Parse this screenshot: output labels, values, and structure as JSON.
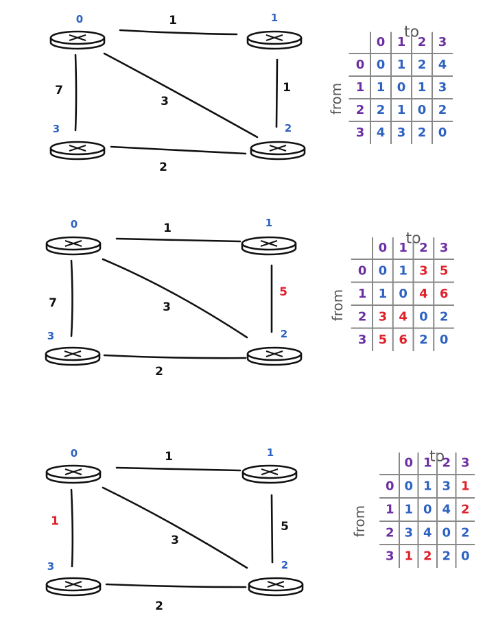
{
  "palette": {
    "node_label": "#2d62c2",
    "edge_normal": "#111111",
    "edge_changed": "#e0202a",
    "header": "#6b2fa3",
    "value_blue": "#2d62c2",
    "value_red": "#e0202a",
    "axis_word": "#555555"
  },
  "panels": [
    {
      "nodes": [
        "0",
        "1",
        "2",
        "3"
      ],
      "edges": [
        {
          "id": "e01",
          "label": "1",
          "changed": false
        },
        {
          "id": "e12",
          "label": "1",
          "changed": false
        },
        {
          "id": "e02",
          "label": "3",
          "changed": false
        },
        {
          "id": "e03",
          "label": "7",
          "changed": false
        },
        {
          "id": "e32",
          "label": "2",
          "changed": false
        }
      ],
      "table": {
        "to_label": "to",
        "from_label": "from",
        "cols": [
          "0",
          "1",
          "2",
          "3"
        ],
        "rows": [
          {
            "head": "0",
            "cells": [
              {
                "v": "0",
                "c": false
              },
              {
                "v": "1",
                "c": false
              },
              {
                "v": "2",
                "c": false
              },
              {
                "v": "4",
                "c": false
              }
            ]
          },
          {
            "head": "1",
            "cells": [
              {
                "v": "1",
                "c": false
              },
              {
                "v": "0",
                "c": false
              },
              {
                "v": "1",
                "c": false
              },
              {
                "v": "3",
                "c": false
              }
            ]
          },
          {
            "head": "2",
            "cells": [
              {
                "v": "2",
                "c": false
              },
              {
                "v": "1",
                "c": false
              },
              {
                "v": "0",
                "c": false
              },
              {
                "v": "2",
                "c": false
              }
            ]
          },
          {
            "head": "3",
            "cells": [
              {
                "v": "4",
                "c": false
              },
              {
                "v": "3",
                "c": false
              },
              {
                "v": "2",
                "c": false
              },
              {
                "v": "0",
                "c": false
              }
            ]
          }
        ]
      }
    },
    {
      "nodes": [
        "0",
        "1",
        "2",
        "3"
      ],
      "edges": [
        {
          "id": "e01",
          "label": "1",
          "changed": false
        },
        {
          "id": "e12",
          "label": "5",
          "changed": true
        },
        {
          "id": "e02",
          "label": "3",
          "changed": false
        },
        {
          "id": "e03",
          "label": "7",
          "changed": false
        },
        {
          "id": "e32",
          "label": "2",
          "changed": false
        }
      ],
      "table": {
        "to_label": "to",
        "from_label": "from",
        "cols": [
          "0",
          "1",
          "2",
          "3"
        ],
        "rows": [
          {
            "head": "0",
            "cells": [
              {
                "v": "0",
                "c": false
              },
              {
                "v": "1",
                "c": false
              },
              {
                "v": "3",
                "c": true
              },
              {
                "v": "5",
                "c": true
              }
            ]
          },
          {
            "head": "1",
            "cells": [
              {
                "v": "1",
                "c": false
              },
              {
                "v": "0",
                "c": false
              },
              {
                "v": "4",
                "c": true
              },
              {
                "v": "6",
                "c": true
              }
            ]
          },
          {
            "head": "2",
            "cells": [
              {
                "v": "3",
                "c": true
              },
              {
                "v": "4",
                "c": true
              },
              {
                "v": "0",
                "c": false
              },
              {
                "v": "2",
                "c": false
              }
            ]
          },
          {
            "head": "3",
            "cells": [
              {
                "v": "5",
                "c": true
              },
              {
                "v": "6",
                "c": true
              },
              {
                "v": "2",
                "c": false
              },
              {
                "v": "0",
                "c": false
              }
            ]
          }
        ]
      }
    },
    {
      "nodes": [
        "0",
        "1",
        "2",
        "3"
      ],
      "edges": [
        {
          "id": "e01",
          "label": "1",
          "changed": false
        },
        {
          "id": "e12",
          "label": "5",
          "changed": false
        },
        {
          "id": "e02",
          "label": "3",
          "changed": false
        },
        {
          "id": "e03",
          "label": "1",
          "changed": true
        },
        {
          "id": "e32",
          "label": "2",
          "changed": false
        }
      ],
      "table": {
        "to_label": "to",
        "from_label": "from",
        "cols": [
          "0",
          "1",
          "2",
          "3"
        ],
        "rows": [
          {
            "head": "0",
            "cells": [
              {
                "v": "0",
                "c": false
              },
              {
                "v": "1",
                "c": false
              },
              {
                "v": "3",
                "c": false
              },
              {
                "v": "1",
                "c": true
              }
            ]
          },
          {
            "head": "1",
            "cells": [
              {
                "v": "1",
                "c": false
              },
              {
                "v": "0",
                "c": false
              },
              {
                "v": "4",
                "c": false
              },
              {
                "v": "2",
                "c": true
              }
            ]
          },
          {
            "head": "2",
            "cells": [
              {
                "v": "3",
                "c": false
              },
              {
                "v": "4",
                "c": false
              },
              {
                "v": "0",
                "c": false
              },
              {
                "v": "2",
                "c": false
              }
            ]
          },
          {
            "head": "3",
            "cells": [
              {
                "v": "1",
                "c": true
              },
              {
                "v": "2",
                "c": true
              },
              {
                "v": "2",
                "c": false
              },
              {
                "v": "0",
                "c": false
              }
            ]
          }
        ]
      }
    }
  ]
}
